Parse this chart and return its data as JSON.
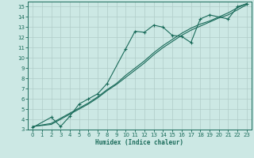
{
  "xlabel": "Humidex (Indice chaleur)",
  "ylabel": "",
  "bg_color": "#cce8e4",
  "grid_color": "#b0ccc8",
  "line_color": "#1a6b5a",
  "xlim": [
    -0.5,
    23.5
  ],
  "ylim": [
    3,
    15.5
  ],
  "xticks": [
    0,
    1,
    2,
    3,
    4,
    5,
    6,
    7,
    8,
    9,
    10,
    11,
    12,
    13,
    14,
    15,
    16,
    17,
    18,
    19,
    20,
    21,
    22,
    23
  ],
  "yticks": [
    3,
    4,
    5,
    6,
    7,
    8,
    9,
    10,
    11,
    12,
    13,
    14,
    15
  ],
  "series1_x": [
    0,
    2,
    3,
    4,
    5,
    6,
    7,
    8,
    10,
    11,
    12,
    13,
    14,
    15,
    16,
    17,
    18,
    19,
    21,
    22,
    23
  ],
  "series1_y": [
    3.2,
    4.2,
    3.3,
    4.3,
    5.5,
    6.0,
    6.5,
    7.5,
    10.9,
    12.6,
    12.5,
    13.2,
    13.0,
    12.2,
    12.1,
    11.5,
    13.8,
    14.2,
    13.8,
    15.0,
    15.3
  ],
  "series2_x": [
    0,
    2,
    3,
    4,
    5,
    6,
    7,
    8,
    9,
    10,
    11,
    12,
    13,
    14,
    15,
    16,
    17,
    18,
    19,
    20,
    21,
    22,
    23
  ],
  "series2_y": [
    3.3,
    3.5,
    4.0,
    4.5,
    5.0,
    5.5,
    6.1,
    6.8,
    7.4,
    8.1,
    8.8,
    9.5,
    10.3,
    11.0,
    11.6,
    12.2,
    12.7,
    13.1,
    13.5,
    13.9,
    14.2,
    14.7,
    15.2
  ],
  "series3_x": [
    0,
    2,
    3,
    4,
    5,
    6,
    7,
    8,
    9,
    10,
    11,
    12,
    13,
    14,
    15,
    16,
    17,
    18,
    19,
    20,
    21,
    22,
    23
  ],
  "series3_y": [
    3.3,
    3.6,
    4.1,
    4.6,
    5.1,
    5.6,
    6.2,
    6.9,
    7.5,
    8.3,
    9.0,
    9.7,
    10.5,
    11.2,
    11.8,
    12.4,
    12.9,
    13.3,
    13.6,
    14.0,
    14.4,
    14.9,
    15.3
  ]
}
